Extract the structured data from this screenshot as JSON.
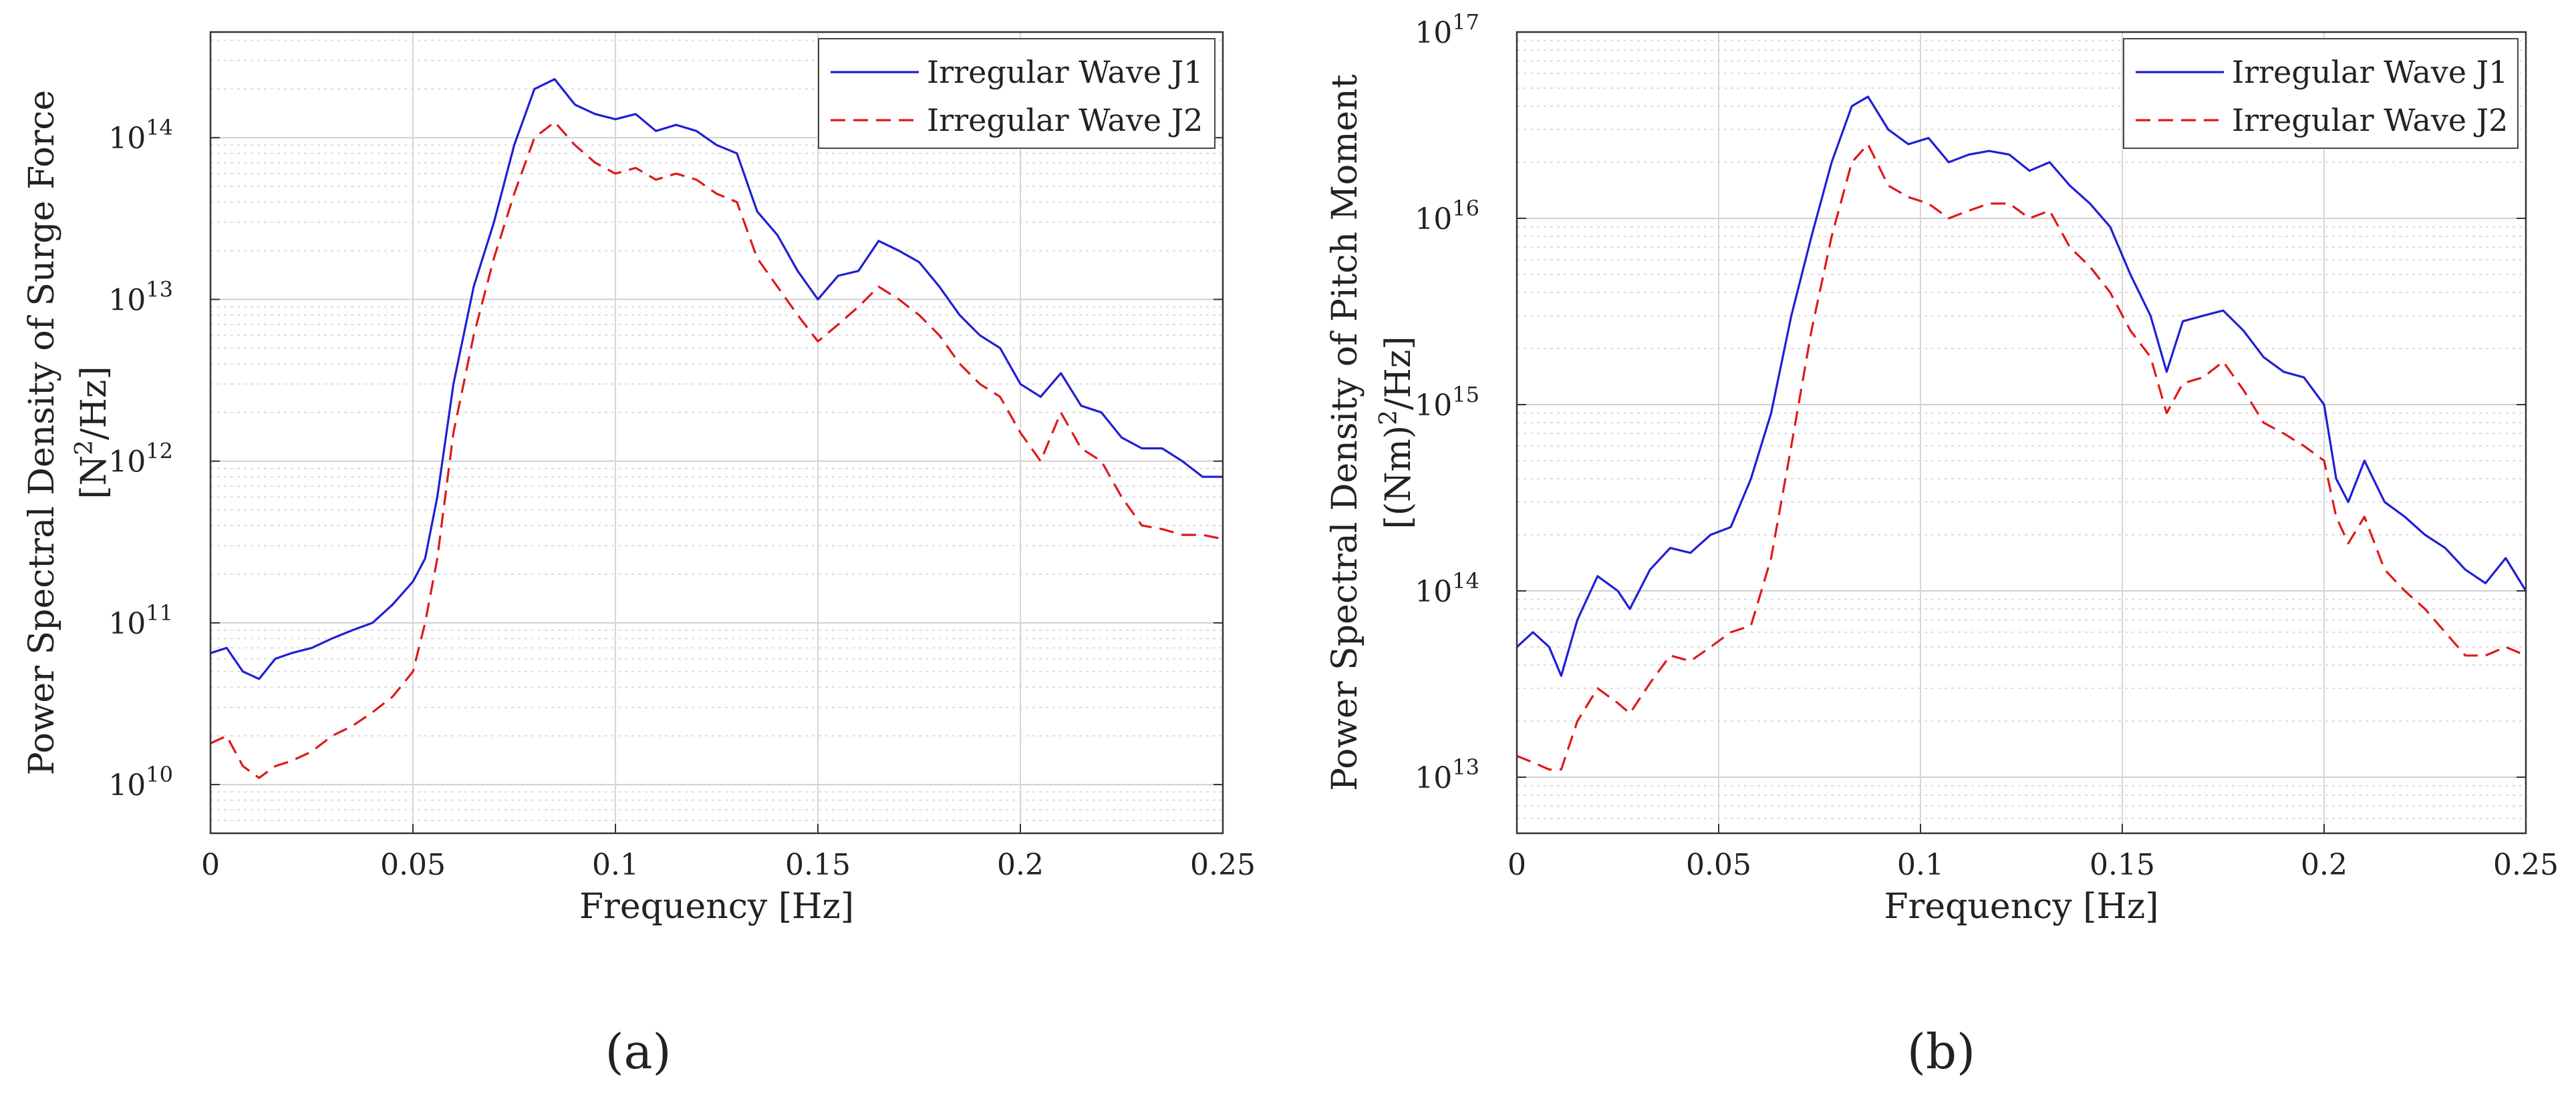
{
  "colors": {
    "j1": "#1f1fd6",
    "j2": "#e01818",
    "grid": "#dcdcdc",
    "axis": "#333333"
  },
  "chart_data": [
    {
      "type": "line",
      "panel": "a",
      "caption": "(a)",
      "xlabel": "Frequency [Hz]",
      "ylabel_line1": "Power Spectral Density of Surge Force",
      "ylabel_line2_base": "[N",
      "ylabel_line2_sup": "2",
      "ylabel_line2_tail": "/Hz]",
      "xlim": [
        0,
        0.25
      ],
      "ylim": [
        5000000000.0,
        450000000000000.0
      ],
      "yscale": "log",
      "grid": true,
      "legend_position": "top-right",
      "xticks": [
        0,
        0.05,
        0.1,
        0.15,
        0.2,
        0.25
      ],
      "xtick_labels": [
        "0",
        "0.05",
        "0.1",
        "0.15",
        "0.2",
        "0.25"
      ],
      "yticks": [
        {
          "exp": 10,
          "base": "10",
          "sup": "10"
        },
        {
          "exp": 11,
          "base": "10",
          "sup": "11"
        },
        {
          "exp": 12,
          "base": "10",
          "sup": "12"
        },
        {
          "exp": 13,
          "base": "10",
          "sup": "13"
        },
        {
          "exp": 14,
          "base": "10",
          "sup": "14"
        }
      ],
      "series": [
        {
          "name": "Irregular Wave J1",
          "style": "solid",
          "x": [
            0,
            0.004,
            0.008,
            0.012,
            0.016,
            0.02,
            0.025,
            0.03,
            0.035,
            0.04,
            0.045,
            0.05,
            0.053,
            0.056,
            0.06,
            0.065,
            0.07,
            0.075,
            0.08,
            0.085,
            0.09,
            0.095,
            0.1,
            0.105,
            0.11,
            0.115,
            0.12,
            0.125,
            0.13,
            0.135,
            0.14,
            0.145,
            0.15,
            0.155,
            0.16,
            0.165,
            0.17,
            0.175,
            0.18,
            0.185,
            0.19,
            0.195,
            0.2,
            0.205,
            0.21,
            0.215,
            0.22,
            0.225,
            0.23,
            0.235,
            0.24,
            0.245,
            0.25
          ],
          "values": [
            65000000000.0,
            70000000000.0,
            50000000000.0,
            45000000000.0,
            60000000000.0,
            65000000000.0,
            70000000000.0,
            80000000000.0,
            90000000000.0,
            100000000000.0,
            130000000000.0,
            180000000000.0,
            250000000000.0,
            600000000000.0,
            3000000000000.0,
            12000000000000.0,
            30000000000000.0,
            90000000000000.0,
            200000000000000.0,
            230000000000000.0,
            160000000000000.0,
            140000000000000.0,
            130000000000000.0,
            140000000000000.0,
            110000000000000.0,
            120000000000000.0,
            110000000000000.0,
            90000000000000.0,
            80000000000000.0,
            35000000000000.0,
            25000000000000.0,
            15000000000000.0,
            10000000000000.0,
            14000000000000.0,
            15000000000000.0,
            23000000000000.0,
            20000000000000.0,
            17000000000000.0,
            12000000000000.0,
            8000000000000.0,
            6000000000000.0,
            5000000000000.0,
            3000000000000.0,
            2500000000000.0,
            3500000000000.0,
            2200000000000.0,
            2000000000000.0,
            1400000000000.0,
            1200000000000.0,
            1200000000000.0,
            1000000000000.0,
            800000000000.0,
            800000000000.0
          ]
        },
        {
          "name": "Irregular Wave J2",
          "style": "dashed",
          "x": [
            0,
            0.004,
            0.008,
            0.012,
            0.016,
            0.02,
            0.025,
            0.03,
            0.035,
            0.04,
            0.045,
            0.05,
            0.053,
            0.056,
            0.06,
            0.065,
            0.07,
            0.075,
            0.08,
            0.085,
            0.09,
            0.095,
            0.1,
            0.105,
            0.11,
            0.115,
            0.12,
            0.125,
            0.13,
            0.135,
            0.14,
            0.145,
            0.15,
            0.155,
            0.16,
            0.165,
            0.17,
            0.175,
            0.18,
            0.185,
            0.19,
            0.195,
            0.2,
            0.205,
            0.21,
            0.215,
            0.22,
            0.225,
            0.23,
            0.235,
            0.24,
            0.245,
            0.25
          ],
          "values": [
            18000000000.0,
            20000000000.0,
            13000000000.0,
            11000000000.0,
            13000000000.0,
            14000000000.0,
            16000000000.0,
            20000000000.0,
            23000000000.0,
            28000000000.0,
            35000000000.0,
            50000000000.0,
            100000000000.0,
            250000000000.0,
            1500000000000.0,
            6000000000000.0,
            18000000000000.0,
            45000000000000.0,
            100000000000000.0,
            125000000000000.0,
            90000000000000.0,
            70000000000000.0,
            60000000000000.0,
            65000000000000.0,
            55000000000000.0,
            60000000000000.0,
            55000000000000.0,
            45000000000000.0,
            40000000000000.0,
            18000000000000.0,
            12000000000000.0,
            8000000000000.0,
            5500000000000.0,
            7000000000000.0,
            9000000000000.0,
            12000000000000.0,
            10000000000000.0,
            8000000000000.0,
            6000000000000.0,
            4000000000000.0,
            3000000000000.0,
            2500000000000.0,
            1500000000000.0,
            1000000000000.0,
            2000000000000.0,
            1200000000000.0,
            1000000000000.0,
            600000000000.0,
            400000000000.0,
            380000000000.0,
            350000000000.0,
            350000000000.0,
            330000000000.0
          ]
        }
      ]
    },
    {
      "type": "line",
      "panel": "b",
      "caption": "(b)",
      "xlabel": "Frequency [Hz]",
      "ylabel_line1": "Power Spectral Density of Pitch Moment",
      "ylabel_line2_base": "[(Nm)",
      "ylabel_line2_sup": "2",
      "ylabel_line2_tail": "/Hz]",
      "xlim": [
        0,
        0.25
      ],
      "ylim": [
        5000000000000.0,
        1e+17
      ],
      "yscale": "log",
      "grid": true,
      "legend_position": "top-right",
      "xticks": [
        0,
        0.05,
        0.1,
        0.15,
        0.2,
        0.25
      ],
      "xtick_labels": [
        "0",
        "0.05",
        "0.1",
        "0.15",
        "0.2",
        "0.25"
      ],
      "yticks": [
        {
          "exp": 13,
          "base": "10",
          "sup": "13"
        },
        {
          "exp": 14,
          "base": "10",
          "sup": "14"
        },
        {
          "exp": 15,
          "base": "10",
          "sup": "15"
        },
        {
          "exp": 16,
          "base": "10",
          "sup": "16"
        },
        {
          "exp": 17,
          "base": "10",
          "sup": "17"
        }
      ],
      "series": [
        {
          "name": "Irregular Wave J1",
          "style": "solid",
          "x": [
            0,
            0.004,
            0.008,
            0.011,
            0.015,
            0.02,
            0.025,
            0.028,
            0.033,
            0.038,
            0.043,
            0.048,
            0.053,
            0.058,
            0.063,
            0.068,
            0.073,
            0.078,
            0.083,
            0.087,
            0.092,
            0.097,
            0.102,
            0.107,
            0.112,
            0.117,
            0.122,
            0.127,
            0.132,
            0.137,
            0.142,
            0.147,
            0.152,
            0.157,
            0.161,
            0.165,
            0.17,
            0.175,
            0.18,
            0.185,
            0.19,
            0.195,
            0.2,
            0.203,
            0.206,
            0.21,
            0.215,
            0.22,
            0.225,
            0.23,
            0.235,
            0.24,
            0.245,
            0.25
          ],
          "values": [
            50000000000000.0,
            60000000000000.0,
            50000000000000.0,
            35000000000000.0,
            70000000000000.0,
            120000000000000.0,
            100000000000000.0,
            80000000000000.0,
            130000000000000.0,
            170000000000000.0,
            160000000000000.0,
            200000000000000.0,
            220000000000000.0,
            400000000000000.0,
            900000000000000.0,
            3000000000000000.0,
            8000000000000000.0,
            2e+16,
            4e+16,
            4.5e+16,
            3e+16,
            2.5e+16,
            2.7e+16,
            2e+16,
            2.2e+16,
            2.3e+16,
            2.2e+16,
            1.8e+16,
            2e+16,
            1.5e+16,
            1.2e+16,
            9000000000000000.0,
            5000000000000000.0,
            3000000000000000.0,
            1500000000000000.0,
            2800000000000000.0,
            3000000000000000.0,
            3200000000000000.0,
            2500000000000000.0,
            1800000000000000.0,
            1500000000000000.0,
            1400000000000000.0,
            1000000000000000.0,
            400000000000000.0,
            300000000000000.0,
            500000000000000.0,
            300000000000000.0,
            250000000000000.0,
            200000000000000.0,
            170000000000000.0,
            130000000000000.0,
            110000000000000.0,
            150000000000000.0,
            100000000000000.0
          ]
        },
        {
          "name": "Irregular Wave J2",
          "style": "dashed",
          "x": [
            0,
            0.004,
            0.008,
            0.011,
            0.015,
            0.02,
            0.025,
            0.028,
            0.033,
            0.038,
            0.043,
            0.048,
            0.053,
            0.058,
            0.063,
            0.068,
            0.073,
            0.078,
            0.083,
            0.087,
            0.092,
            0.097,
            0.102,
            0.107,
            0.112,
            0.117,
            0.122,
            0.127,
            0.132,
            0.137,
            0.142,
            0.147,
            0.152,
            0.157,
            0.161,
            0.165,
            0.17,
            0.175,
            0.18,
            0.185,
            0.19,
            0.195,
            0.2,
            0.203,
            0.206,
            0.21,
            0.215,
            0.22,
            0.225,
            0.23,
            0.235,
            0.24,
            0.245,
            0.25
          ],
          "values": [
            13000000000000.0,
            12000000000000.0,
            11000000000000.0,
            11000000000000.0,
            20000000000000.0,
            30000000000000.0,
            25000000000000.0,
            22000000000000.0,
            32000000000000.0,
            45000000000000.0,
            42000000000000.0,
            50000000000000.0,
            60000000000000.0,
            65000000000000.0,
            150000000000000.0,
            600000000000000.0,
            2500000000000000.0,
            8000000000000000.0,
            2e+16,
            2.5e+16,
            1.5e+16,
            1.3e+16,
            1.2e+16,
            1e+16,
            1.1e+16,
            1.2e+16,
            1.2e+16,
            1e+16,
            1.1e+16,
            7000000000000000.0,
            5500000000000000.0,
            4000000000000000.0,
            2500000000000000.0,
            1800000000000000.0,
            900000000000000.0,
            1300000000000000.0,
            1400000000000000.0,
            1700000000000000.0,
            1200000000000000.0,
            800000000000000.0,
            700000000000000.0,
            600000000000000.0,
            500000000000000.0,
            250000000000000.0,
            180000000000000.0,
            250000000000000.0,
            130000000000000.0,
            100000000000000.0,
            80000000000000.0,
            60000000000000.0,
            45000000000000.0,
            45000000000000.0,
            50000000000000.0,
            45000000000000.0
          ]
        }
      ]
    }
  ]
}
